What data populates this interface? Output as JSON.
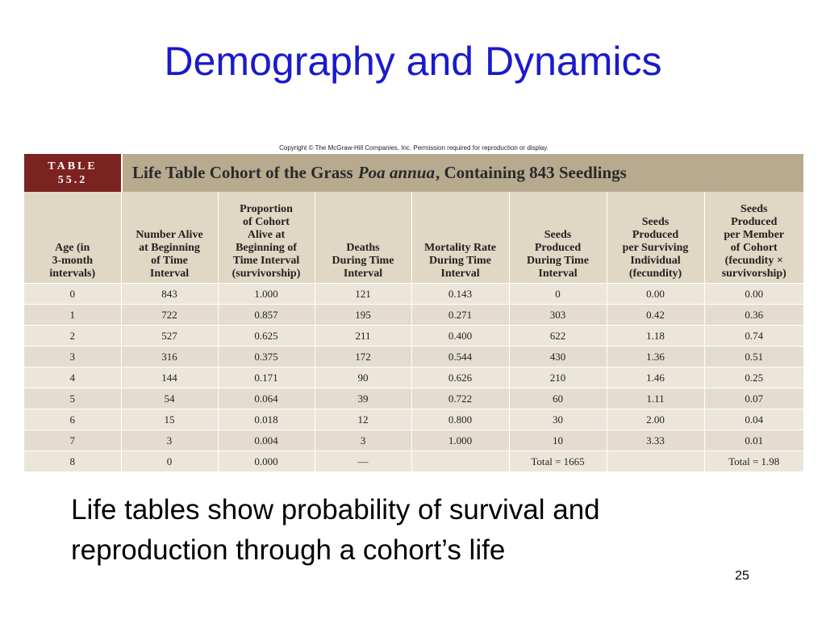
{
  "slide": {
    "title": "Demography and Dynamics",
    "copyright": "Copyright © The McGraw-Hill Companies, Inc. Permission required for reproduction or display.",
    "subtitle_line1": "Life tables show probability of survival and",
    "subtitle_line2": "reproduction through a cohort’s life",
    "page_number": "25"
  },
  "table": {
    "tag_line1": "TABLE",
    "tag_line2": "55.2",
    "caption_before": "Life Table Cohort of the Grass",
    "caption_italic": "Poa annua",
    "caption_after": ", Containing 843 Seedlings",
    "headers": [
      "Age (in\n3-month\nintervals)",
      "Number Alive\nat Beginning\nof Time\nInterval",
      "Proportion\nof Cohort\nAlive at\nBeginning of\nTime Interval\n(survivorship)",
      "Deaths\nDuring Time\nInterval",
      "Mortality Rate\nDuring Time\nInterval",
      "Seeds\nProduced\nDuring Time\nInterval",
      "Seeds\nProduced\nper Surviving\nIndividual\n(fecundity)",
      "Seeds\nProduced\nper Member\nof Cohort\n(fecundity ×\nsurvivorship)"
    ],
    "rows": [
      [
        "0",
        "843",
        "1.000",
        "121",
        "0.143",
        "0",
        "0.00",
        "0.00"
      ],
      [
        "1",
        "722",
        "0.857",
        "195",
        "0.271",
        "303",
        "0.42",
        "0.36"
      ],
      [
        "2",
        "527",
        "0.625",
        "211",
        "0.400",
        "622",
        "1.18",
        "0.74"
      ],
      [
        "3",
        "316",
        "0.375",
        "172",
        "0.544",
        "430",
        "1.36",
        "0.51"
      ],
      [
        "4",
        "144",
        "0.171",
        "90",
        "0.626",
        "210",
        "1.46",
        "0.25"
      ],
      [
        "5",
        "54",
        "0.064",
        "39",
        "0.722",
        "60",
        "1.11",
        "0.07"
      ],
      [
        "6",
        "15",
        "0.018",
        "12",
        "0.800",
        "30",
        "2.00",
        "0.04"
      ],
      [
        "7",
        "3",
        "0.004",
        "3",
        "1.000",
        "10",
        "3.33",
        "0.01"
      ],
      [
        "8",
        "0",
        "0.000",
        "—",
        "",
        "Total = 1665",
        "",
        "Total = 1.98"
      ]
    ]
  }
}
